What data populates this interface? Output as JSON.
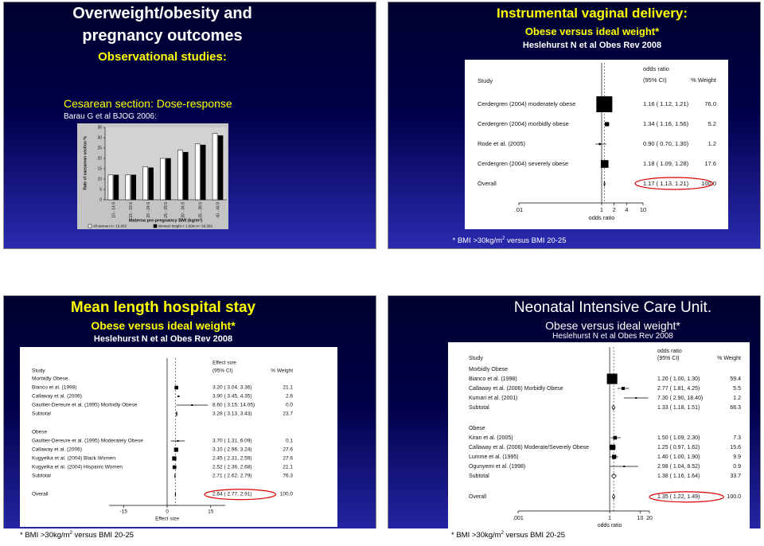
{
  "slides": [
    {
      "title": [
        "Overweight/obesity and",
        "pregnancy outcomes"
      ],
      "subtitle": "Observational studies:",
      "heading": "Cesarean section: Dose-response",
      "citation": "Barau G et al BJOG 2006:",
      "chart_data": {
        "type": "bar",
        "y_label": "Rate of caesarean section %",
        "x_label": "Materna pre-pregnancy BMI (kg/m²)",
        "categories": [
          "10 - 14.9",
          "15 - 19.9",
          "20 - 24.9",
          "25 - 29.9",
          "30 - 34.9",
          "35 - 39.9",
          "40 - 44.9"
        ],
        "series": [
          {
            "name": "All women n= 16,062",
            "color": "#ffffff",
            "values": [
              12,
              12,
              16,
              20,
              24,
              27,
              32
            ]
          },
          {
            "name": "Women height < 1.60m n= 59,382",
            "color": "#000000",
            "values": [
              12,
              12,
              15.5,
              20,
              23,
              26.5,
              31
            ]
          }
        ],
        "ylim": [
          0,
          35
        ],
        "yticks": [
          0,
          5,
          10,
          15,
          20,
          25,
          30,
          35
        ]
      }
    },
    {
      "title": [
        "Instrumental vaginal delivery:"
      ],
      "subtitle": "Obese versus ideal weight*",
      "citation": "Heslehurst N et al  Obes Rev 2008",
      "forest_plot": {
        "headers": {
          "study": "Study",
          "estimate": [
            "odds ratio",
            "(95% CI)"
          ],
          "weight": "% Weight"
        },
        "rows": [
          {
            "label": "Cerdergren (2004) moderately obese",
            "estimate": "1.16 ( 1.12, 1.21)",
            "weight": "76.0"
          },
          {
            "label": "Cerdergren (2004) morbidly obese",
            "estimate": "1.34 ( 1.16, 1.56)",
            "weight": "5.2"
          },
          {
            "label": "Rode et al. (2005)",
            "estimate": "0.90 ( 0.70, 1.30)",
            "weight": "1.2"
          },
          {
            "label": "Cerdergren (2004) severely obese",
            "estimate": "1.18 ( 1.09, 1.28)",
            "weight": "17.6"
          }
        ],
        "overall": {
          "label": "Overall",
          "estimate": "1.17 ( 1.13, 1.21)",
          "weight": "100.0"
        },
        "axis": {
          "log": true,
          "xlim": [
            0.01,
            10
          ],
          "xticks": [
            {
              "value": 0.01,
              "label": ".01"
            },
            1,
            2,
            4,
            10
          ],
          "title": "odds ratio"
        }
      },
      "footnote": {
        "pre": "* BMI >30kg/m",
        "sup": "2",
        "post": " versus BMI 20-25"
      }
    },
    {
      "title": [
        "Mean length hospital stay"
      ],
      "subtitle": "Obese versus ideal weight*",
      "citation": "Heslehurst N et al  Obes Rev 2008",
      "forest_plot": {
        "headers": {
          "study": "Study",
          "estimate": [
            "Effect size",
            "(95% CI)"
          ],
          "weight": "% Weight"
        },
        "groups": [
          {
            "name": "Morbidly Obese",
            "rows": [
              {
                "label": "Bianco et al. (1998)",
                "estimate": "3.20 ( 3.04, 3.36)",
                "weight": "21.1"
              },
              {
                "label": "Callaway et al. (2006)",
                "estimate": "3.90 ( 3.45, 4.35)",
                "weight": "2.6"
              },
              {
                "label": "Gaultier-Dereure et al. (1995) Morbidly Obese",
                "estimate": "8.60 ( 3.15, 14.05)",
                "weight": "0.0"
              }
            ],
            "subtotal": {
              "label": "Subtotal",
              "estimate": "3.28 ( 3.13, 3.43)",
              "weight": "23.7"
            }
          },
          {
            "name": "Obese",
            "rows": [
              {
                "label": "Gaultier-Dereure et al. (1995) Moderately Obese",
                "estimate": "3.70 ( 1.31, 6.09)",
                "weight": "0.1"
              },
              {
                "label": "Callaway et al. (2006)",
                "estimate": "3.10 ( 2.96, 3.24)",
                "weight": "27.6"
              },
              {
                "label": "Kugyelka et al. (2004) Black Women",
                "estimate": "2.45 ( 2.31, 2.59)",
                "weight": "27.6"
              },
              {
                "label": "Kugyelka et al. (2004) Hispanic Women",
                "estimate": "2.52 ( 2.36, 2.68)",
                "weight": "21.1"
              }
            ],
            "subtotal": {
              "label": "Subtotal",
              "estimate": "2.71 ( 2.62, 2.79)",
              "weight": "76.3"
            }
          }
        ],
        "overall": {
          "label": "Overall",
          "estimate": "2.84 ( 2.77, 2.91)",
          "weight": "100.0"
        },
        "axis": {
          "log": false,
          "xlim": [
            -20,
            20
          ],
          "xticks": [
            -15,
            0,
            15
          ],
          "title": "Effect size"
        }
      },
      "footnote": {
        "pre": "* BMI >30kg/m",
        "sup": "2",
        "post": " versus BMI 20-25"
      }
    },
    {
      "title": [
        "Neonatal Intensive Care Unit."
      ],
      "subtitle": "Obese versus ideal weight*",
      "citation": "Heslehurst N et al  Obes Rev 2008",
      "forest_plot": {
        "headers": {
          "study": "Study",
          "estimate": [
            "odds ratio",
            "(95% CI)"
          ],
          "weight": "% Weight"
        },
        "groups": [
          {
            "name": "Morbidly Obese",
            "rows": [
              {
                "label": "Bianco et al. (1998)",
                "estimate": "1.20 ( 1.00, 1.30)",
                "weight": "59.4"
              },
              {
                "label": "Callaway et al. (2006) Morbidly Obese",
                "estimate": "2.77 ( 1.81, 4.25)",
                "weight": "5.5"
              },
              {
                "label": "Kumari et al. (2001)",
                "estimate": "7.30 ( 2.90, 18.40)",
                "weight": "1.2"
              }
            ],
            "subtotal": {
              "label": "Subtotal",
              "estimate": "1.33 ( 1.18, 1.51)",
              "weight": "66.3"
            }
          },
          {
            "name": "Obese",
            "rows": [
              {
                "label": "Kiran et al. (2005)",
                "estimate": "1.50 ( 1.09, 2.30)",
                "weight": "7.3"
              },
              {
                "label": "Callaway et al. (2006) Moderate/Severely Obese",
                "estimate": "1.25 ( 0.97, 1.62)",
                "weight": "15.6"
              },
              {
                "label": "Lumme et al. (1995)",
                "estimate": "1.40 ( 1.00, 1.90)",
                "weight": "9.9"
              },
              {
                "label": "Ogunyemi et al. (1998)",
                "estimate": "2.98 ( 1.04, 8.52)",
                "weight": "0.9"
              }
            ],
            "subtotal": {
              "label": "Subtotal",
              "estimate": "1.38 ( 1.16, 1.64)",
              "weight": "33.7"
            }
          }
        ],
        "overall": {
          "label": "Overall",
          "estimate": "1.35 ( 1.22, 1.49)",
          "weight": "100.0"
        },
        "axis": {
          "log": true,
          "xlim": [
            0.001,
            20
          ],
          "xticks": [
            {
              "value": 0.001,
              "label": ".001"
            },
            1,
            10,
            20
          ],
          "title": "odds ratio"
        }
      },
      "footnote": {
        "pre": "* BMI >30kg/m",
        "sup": "2",
        "post": " versus BMI 20-25"
      }
    }
  ]
}
